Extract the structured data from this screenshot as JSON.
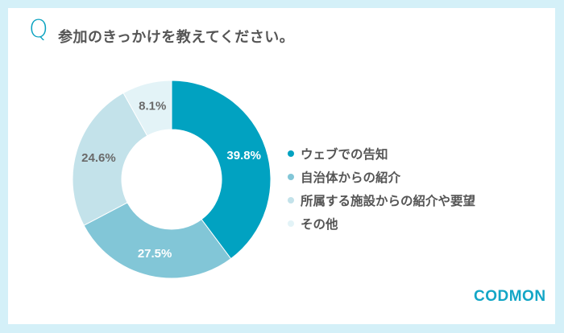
{
  "header": {
    "q_mark": "Q",
    "title": "参加のきっかけを教えてください。"
  },
  "colors": {
    "background": "#d4f0f8",
    "accent": "#0aa2c0",
    "text": "#555555"
  },
  "chart_data": {
    "type": "pie",
    "donut": true,
    "title": "参加のきっかけを教えてください。",
    "categories": [
      "ウェブでの告知",
      "自治体からの紹介",
      "所属する施設からの紹介や要望",
      "その他"
    ],
    "values": [
      39.8,
      27.5,
      24.6,
      8.1
    ],
    "labels": [
      "39.8%",
      "27.5%",
      "24.6%",
      "8.1%"
    ],
    "colors": [
      "#01a2c1",
      "#82c6d7",
      "#c3e2ea",
      "#e3f3f7"
    ],
    "label_colors": [
      "#ffffff",
      "#ffffff",
      "#6a6a6a",
      "#6a6a6a"
    ],
    "legend_position": "right"
  },
  "legend": {
    "items": [
      {
        "label": "ウェブでの告知",
        "color": "#01a2c1"
      },
      {
        "label": "自治体からの紹介",
        "color": "#82c6d7"
      },
      {
        "label": "所属する施設からの紹介や要望",
        "color": "#c3e2ea"
      },
      {
        "label": "その他",
        "color": "#e3f3f7"
      }
    ]
  },
  "logo": {
    "text": "CODMON"
  }
}
